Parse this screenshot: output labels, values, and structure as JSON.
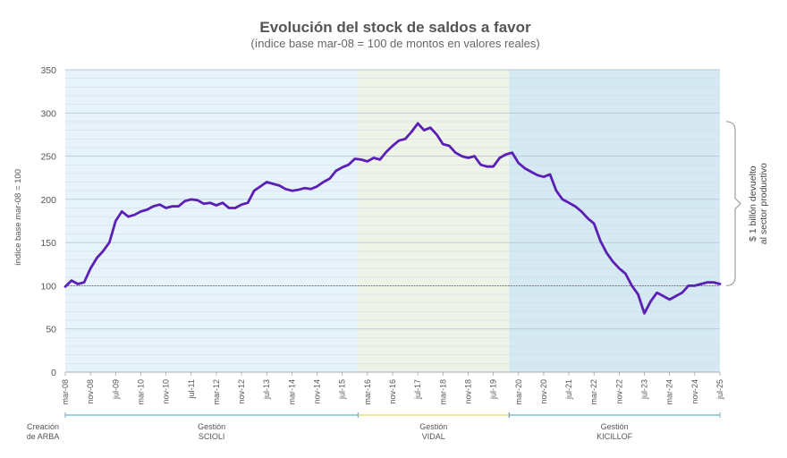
{
  "chart_data": {
    "type": "line",
    "title": "Evolución del stock de saldos a favor",
    "subtitle": "(índice base mar-08 = 100 de montos en valores reales)",
    "ylabel": "índice base mar-08 = 100",
    "ylim": [
      0,
      350
    ],
    "yticks": [
      0,
      50,
      100,
      150,
      200,
      250,
      300,
      350
    ],
    "xlim": [
      "2008-03",
      "2025-07"
    ],
    "xticks": [
      "mar-08",
      "nov-08",
      "jul-09",
      "mar-10",
      "nov-10",
      "jul-11",
      "mar-12",
      "nov-12",
      "jul-13",
      "mar-14",
      "nov-14",
      "jul-15",
      "mar-16",
      "nov-16",
      "jul-17",
      "mar-18",
      "nov-18",
      "jul-19",
      "mar-20",
      "nov-20",
      "jul-21",
      "mar-22",
      "nov-22",
      "jul-23",
      "mar-24",
      "nov-24",
      "jul-25"
    ],
    "grid": true,
    "reference_line": 100,
    "line_color": "#5b1fb5",
    "series": [
      {
        "x": [
          "2008-03",
          "2008-05",
          "2008-07",
          "2008-09",
          "2008-11",
          "2009-01",
          "2009-03",
          "2009-05",
          "2009-07",
          "2009-09",
          "2009-11",
          "2010-01",
          "2010-03",
          "2010-05",
          "2010-07",
          "2010-09",
          "2010-11",
          "2011-01",
          "2011-03",
          "2011-05",
          "2011-07",
          "2011-09",
          "2011-11",
          "2012-01",
          "2012-03",
          "2012-05",
          "2012-07",
          "2012-09",
          "2012-11",
          "2013-01",
          "2013-03",
          "2013-05",
          "2013-07",
          "2013-09",
          "2013-11",
          "2014-01",
          "2014-03",
          "2014-05",
          "2014-07",
          "2014-09",
          "2014-11",
          "2015-01",
          "2015-03",
          "2015-05",
          "2015-07",
          "2015-09",
          "2015-11",
          "2016-01",
          "2016-03",
          "2016-05",
          "2016-07",
          "2016-09",
          "2016-11",
          "2017-01",
          "2017-03",
          "2017-05",
          "2017-07",
          "2017-09",
          "2017-11",
          "2018-01",
          "2018-03",
          "2018-05",
          "2018-07",
          "2018-09",
          "2018-11",
          "2019-01",
          "2019-03",
          "2019-05",
          "2019-07",
          "2019-09",
          "2019-11",
          "2020-01",
          "2020-03",
          "2020-05",
          "2020-07",
          "2020-09",
          "2020-11",
          "2021-01",
          "2021-03",
          "2021-05",
          "2021-07",
          "2021-09",
          "2021-11",
          "2022-01",
          "2022-03",
          "2022-05",
          "2022-07",
          "2022-09",
          "2022-11",
          "2023-01",
          "2023-03",
          "2023-05",
          "2023-07",
          "2023-09",
          "2023-11",
          "2024-01",
          "2024-03",
          "2024-05",
          "2024-07",
          "2024-09",
          "2024-11",
          "2025-01",
          "2025-03",
          "2025-05",
          "2025-07"
        ],
        "values": [
          99,
          106,
          102,
          104,
          120,
          132,
          140,
          150,
          175,
          186,
          180,
          182,
          186,
          188,
          192,
          194,
          190,
          192,
          192,
          198,
          200,
          199,
          195,
          196,
          193,
          196,
          190,
          190,
          194,
          196,
          210,
          215,
          220,
          218,
          216,
          212,
          210,
          211,
          213,
          212,
          215,
          220,
          224,
          233,
          237,
          240,
          247,
          246,
          244,
          248,
          246,
          255,
          262,
          268,
          270,
          278,
          288,
          280,
          283,
          275,
          264,
          262,
          254,
          250,
          248,
          250,
          240,
          238,
          238,
          248,
          252,
          254,
          242,
          236,
          232,
          228,
          226,
          229,
          210,
          200,
          196,
          192,
          186,
          178,
          172,
          152,
          138,
          128,
          120,
          114,
          100,
          90,
          68,
          82,
          92,
          88,
          84,
          88,
          92,
          100,
          100,
          102,
          104,
          104,
          102
        ]
      }
    ],
    "periods": [
      {
        "label": "Creación\nde ARBA",
        "shade": "none"
      },
      {
        "label": "Gestión\nSCIOLI",
        "start": "2008-03",
        "end": "2015-12",
        "shade": "#e7f3fb",
        "bar": "#7fc4d8"
      },
      {
        "label": "Gestión\nVIDAL",
        "start": "2015-12",
        "end": "2019-12",
        "shade": "#edf3e6",
        "bar": "#e6e27a"
      },
      {
        "label": "Gestión\nKICILLOF",
        "start": "2019-12",
        "end": "2025-07",
        "shade": "#d4e9f1",
        "bar": "#7fc4d8"
      }
    ],
    "annotation": "$ 1 billón devuelto\nal sector productivo"
  }
}
